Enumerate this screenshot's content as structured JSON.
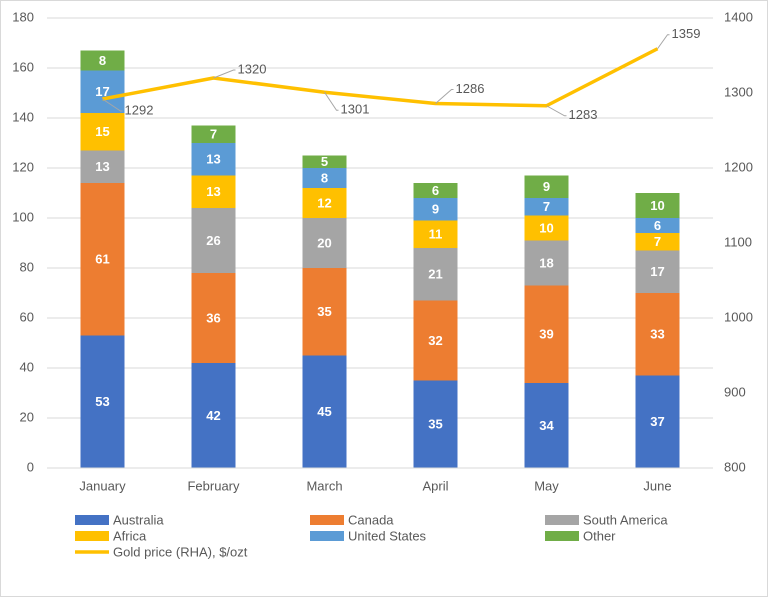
{
  "chart_data": {
    "type": "bar",
    "stacked": true,
    "categories": [
      "January",
      "February",
      "March",
      "April",
      "May",
      "June"
    ],
    "series": [
      {
        "name": "Australia",
        "color": "#4472c4",
        "values": [
          53,
          42,
          45,
          35,
          34,
          37
        ]
      },
      {
        "name": "Canada",
        "color": "#ed7d31",
        "values": [
          61,
          36,
          35,
          32,
          39,
          33
        ]
      },
      {
        "name": "South America",
        "color": "#a5a5a5",
        "values": [
          13,
          26,
          20,
          21,
          18,
          17
        ]
      },
      {
        "name": "Africa",
        "color": "#ffc000",
        "values": [
          15,
          13,
          12,
          11,
          10,
          7
        ]
      },
      {
        "name": "United States",
        "color": "#5b9bd5",
        "values": [
          17,
          13,
          8,
          9,
          7,
          6
        ]
      },
      {
        "name": "Other",
        "color": "#70ad47",
        "values": [
          8,
          7,
          5,
          6,
          9,
          10
        ]
      },
      {
        "name": "Gold price (RHA), $/ozt",
        "color": "#ffc000",
        "type": "line",
        "axis": "y2",
        "values": [
          1292,
          1320,
          1301,
          1286,
          1283,
          1359
        ]
      }
    ],
    "ylim": [
      0,
      180
    ],
    "yticks": [
      0,
      20,
      40,
      60,
      80,
      100,
      120,
      140,
      160,
      180
    ],
    "y2lim": [
      800,
      1400
    ],
    "y2ticks": [
      800,
      900,
      1000,
      1100,
      1200,
      1300,
      1400
    ],
    "grid": true,
    "legend": "bottom"
  }
}
